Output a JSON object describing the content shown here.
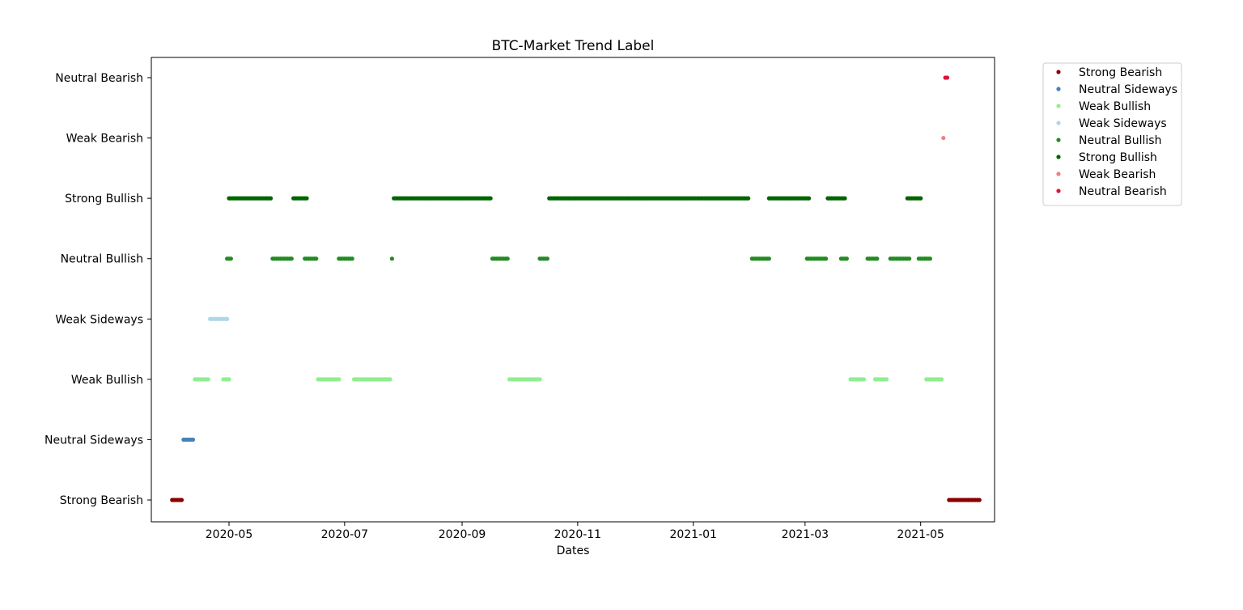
{
  "chart_data": {
    "type": "scatter",
    "title": "BTC-Market Trend Label",
    "xlabel": "Dates",
    "ylabel": "",
    "x_axis_type": "date",
    "xlim": [
      "2020-03-21",
      "2021-06-09"
    ],
    "x_ticks": [
      "2020-05",
      "2020-07",
      "2020-09",
      "2020-11",
      "2021-01",
      "2021-03",
      "2021-05"
    ],
    "categories_y": [
      "Strong Bearish",
      "Neutral Sideways",
      "Weak Bullish",
      "Weak Sideways",
      "Neutral Bullish",
      "Strong Bullish",
      "Weak Bearish",
      "Neutral Bearish"
    ],
    "legend_position": "outside-upper-right",
    "grid": false,
    "series": [
      {
        "name": "Strong Bearish",
        "color": "#8b0000",
        "level": "Strong Bearish",
        "ranges": [
          [
            "2020-04-01",
            "2020-04-06"
          ],
          [
            "2021-05-16",
            "2021-06-01"
          ]
        ]
      },
      {
        "name": "Neutral Sideways",
        "color": "#4682b4",
        "level": "Neutral Sideways",
        "ranges": [
          [
            "2020-04-07",
            "2020-04-12"
          ]
        ]
      },
      {
        "name": "Weak Bullish",
        "color": "#90ee90",
        "level": "Weak Bullish",
        "ranges": [
          [
            "2020-04-13",
            "2020-04-20"
          ],
          [
            "2020-04-28",
            "2020-05-01"
          ],
          [
            "2020-06-17",
            "2020-06-28"
          ],
          [
            "2020-07-06",
            "2020-07-25"
          ],
          [
            "2020-09-26",
            "2020-10-12"
          ],
          [
            "2021-03-25",
            "2021-04-01"
          ],
          [
            "2021-04-07",
            "2021-04-13"
          ],
          [
            "2021-05-04",
            "2021-05-12"
          ]
        ]
      },
      {
        "name": "Weak Sideways",
        "color": "#add8e6",
        "level": "Weak Sideways",
        "ranges": [
          [
            "2020-04-21",
            "2020-04-30"
          ]
        ]
      },
      {
        "name": "Neutral Bullish",
        "color": "#228b22",
        "level": "Neutral Bullish",
        "ranges": [
          [
            "2020-04-30",
            "2020-05-02"
          ],
          [
            "2020-05-24",
            "2020-06-03"
          ],
          [
            "2020-06-10",
            "2020-06-16"
          ],
          [
            "2020-06-28",
            "2020-07-05"
          ],
          [
            "2020-07-26",
            "2020-07-26"
          ],
          [
            "2020-09-17",
            "2020-09-25"
          ],
          [
            "2020-10-12",
            "2020-10-16"
          ],
          [
            "2021-02-01",
            "2021-02-10"
          ],
          [
            "2021-03-02",
            "2021-03-12"
          ],
          [
            "2021-03-20",
            "2021-03-23"
          ],
          [
            "2021-04-03",
            "2021-04-08"
          ],
          [
            "2021-04-15",
            "2021-04-25"
          ],
          [
            "2021-04-30",
            "2021-05-06"
          ]
        ]
      },
      {
        "name": "Strong Bullish",
        "color": "#006400",
        "level": "Strong Bullish",
        "ranges": [
          [
            "2020-05-01",
            "2020-05-23"
          ],
          [
            "2020-06-04",
            "2020-06-11"
          ],
          [
            "2020-07-27",
            "2020-09-16"
          ],
          [
            "2020-10-17",
            "2021-01-30"
          ],
          [
            "2021-02-10",
            "2021-03-03"
          ],
          [
            "2021-03-13",
            "2021-03-22"
          ],
          [
            "2021-04-24",
            "2021-05-01"
          ]
        ]
      },
      {
        "name": "Weak Bearish",
        "color": "#f08080",
        "level": "Weak Bearish",
        "ranges": [
          [
            "2021-05-13",
            "2021-05-13"
          ]
        ]
      },
      {
        "name": "Neutral Bearish",
        "color": "#dc143c",
        "level": "Neutral Bearish",
        "ranges": [
          [
            "2021-05-14",
            "2021-05-15"
          ]
        ]
      }
    ]
  }
}
